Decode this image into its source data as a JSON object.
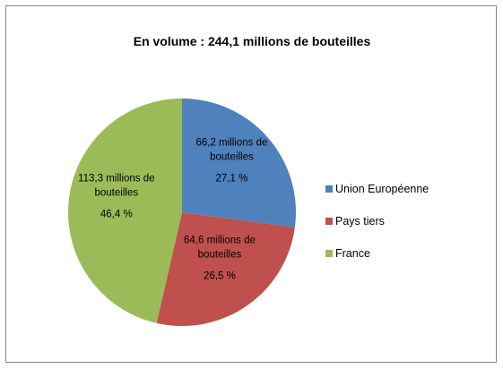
{
  "chart_data": {
    "type": "pie",
    "title": "En volume : 244,1 millions de bouteilles",
    "slices": [
      {
        "name": "Union Européenne",
        "value": 66.2,
        "percent": 27.1,
        "label_lines": [
          "66,2 millions de",
          "bouteilles",
          "27,1 %"
        ],
        "color": "#4F81BD"
      },
      {
        "name": "Pays tiers",
        "value": 64.6,
        "percent": 26.5,
        "label_lines": [
          "64,6 millions de",
          "bouteilles",
          "26,5 %"
        ],
        "color": "#C0504D"
      },
      {
        "name": "France",
        "value": 113.3,
        "percent": 46.4,
        "label_lines": [
          "113,3 millions de",
          "bouteilles",
          "46,4 %"
        ],
        "color": "#9BBB59"
      }
    ],
    "legend_position": "right"
  }
}
